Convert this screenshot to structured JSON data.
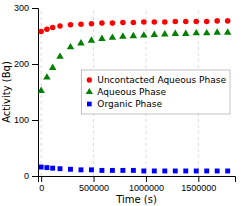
{
  "chart_data": {
    "type": "scatter",
    "xlabel": "Time (s)",
    "ylabel": "Activity (Bq)",
    "x": [
      0,
      55000,
      110000,
      180000,
      280000,
      380000,
      480000,
      580000,
      680000,
      780000,
      880000,
      980000,
      1080000,
      1180000,
      1280000,
      1380000,
      1480000,
      1580000,
      1680000,
      1780000
    ],
    "series": [
      {
        "name": "Uncontacted Aqueous Phase",
        "color": "red",
        "marker": "circle",
        "values": [
          258,
          262,
          265,
          268,
          270,
          271,
          272,
          273,
          273,
          274,
          274,
          275,
          275,
          275,
          276,
          276,
          276,
          276,
          277,
          277
        ]
      },
      {
        "name": "Aqueous Phase",
        "color": "green",
        "marker": "triangle",
        "values": [
          152,
          176,
          193,
          213,
          230,
          237,
          242,
          245,
          247,
          249,
          250,
          251,
          252,
          253,
          254,
          254,
          255,
          255,
          256,
          256
        ]
      },
      {
        "name": "Organic Phase",
        "color": "blue",
        "marker": "square",
        "values": [
          16,
          15,
          14,
          13,
          12,
          11,
          11,
          10,
          10,
          10,
          10,
          9,
          9,
          9,
          9,
          9,
          9,
          9,
          9,
          9
        ]
      }
    ],
    "xlim": [
      -30000,
      1850000
    ],
    "xticks": [
      0,
      500000,
      1000000,
      1500000
    ],
    "ylim": [
      0,
      300
    ],
    "yticks": [
      0,
      100,
      200,
      300
    ],
    "grid": "x",
    "legend": "center right"
  }
}
